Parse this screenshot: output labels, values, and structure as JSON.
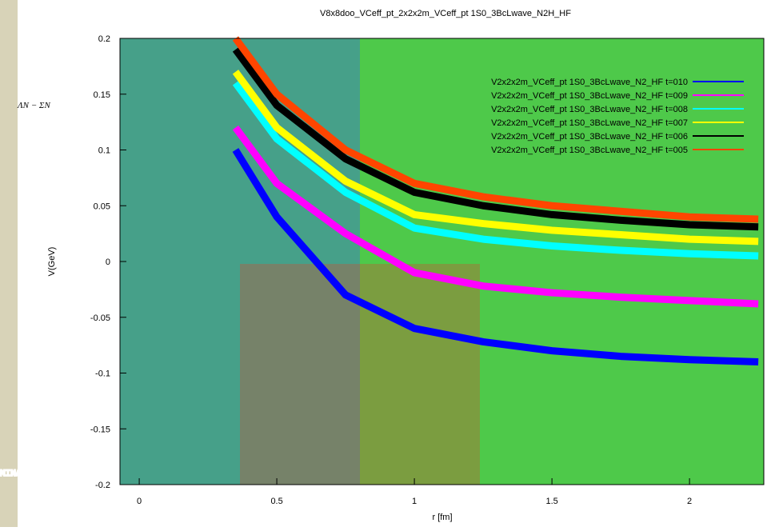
{
  "chart_data": {
    "type": "line",
    "title": "V8x8doo_VCeff_pt_2x2x2m_VCeff_pt 1S0_3BcLwave_N2H_HF",
    "xlabel": "r [fm]",
    "ylabel": "V(GeV)",
    "overlay_label": "ΛN − ΣN",
    "watermark": "MINARY",
    "x": [
      0.35,
      0.5,
      0.75,
      1,
      1.25,
      1.5,
      1.75,
      2,
      2.25
    ],
    "series": [
      {
        "name": "V2x2x2m_VCeff_pt 1S0_3BcLwave_N2_HF t=010",
        "color": "#0000ff",
        "values": [
          0.1,
          0.04,
          -0.03,
          -0.06,
          -0.072,
          -0.08,
          -0.085,
          -0.088,
          -0.09
        ]
      },
      {
        "name": "V2x2x2m_VCeff_pt 1S0_3BcLwave_N2_HF t=009",
        "color": "#ff00ff",
        "values": [
          0.12,
          0.07,
          0.025,
          -0.01,
          -0.022,
          -0.028,
          -0.032,
          -0.035,
          -0.038
        ]
      },
      {
        "name": "V2x2x2m_VCeff_pt 1S0_3BcLwave_N2_HF t=008",
        "color": "#00ffff",
        "values": [
          0.16,
          0.11,
          0.062,
          0.03,
          0.02,
          0.014,
          0.01,
          0.007,
          0.005
        ]
      },
      {
        "name": "V2x2x2m_VCeff_pt 1S0_3BcLwave_N2_HF t=007",
        "color": "#ffff00",
        "values": [
          0.17,
          0.12,
          0.072,
          0.042,
          0.034,
          0.028,
          0.024,
          0.02,
          0.018
        ]
      },
      {
        "name": "V2x2x2m_VCeff_pt 1S0_3BcLwave_N2_HF t=006",
        "color": "#000000",
        "values": [
          0.19,
          0.14,
          0.092,
          0.062,
          0.05,
          0.042,
          0.037,
          0.033,
          0.031
        ]
      },
      {
        "name": "V2x2x2m_VCeff_pt 1S0_3BcLwave_N2_HF t=005",
        "color": "#ff4500",
        "values": [
          0.2,
          0.15,
          0.1,
          0.07,
          0.058,
          0.05,
          0.045,
          0.04,
          0.038
        ]
      }
    ],
    "xlim": [
      -0.07,
      2.27
    ],
    "ylim": [
      -0.2,
      0.2
    ],
    "xticks": [
      0,
      0.5,
      1,
      1.5,
      2
    ],
    "yticks": [
      -0.2,
      -0.15,
      -0.1,
      -0.05,
      0,
      0.05,
      0.1,
      0.15,
      0.2
    ],
    "legend": "upper right"
  }
}
